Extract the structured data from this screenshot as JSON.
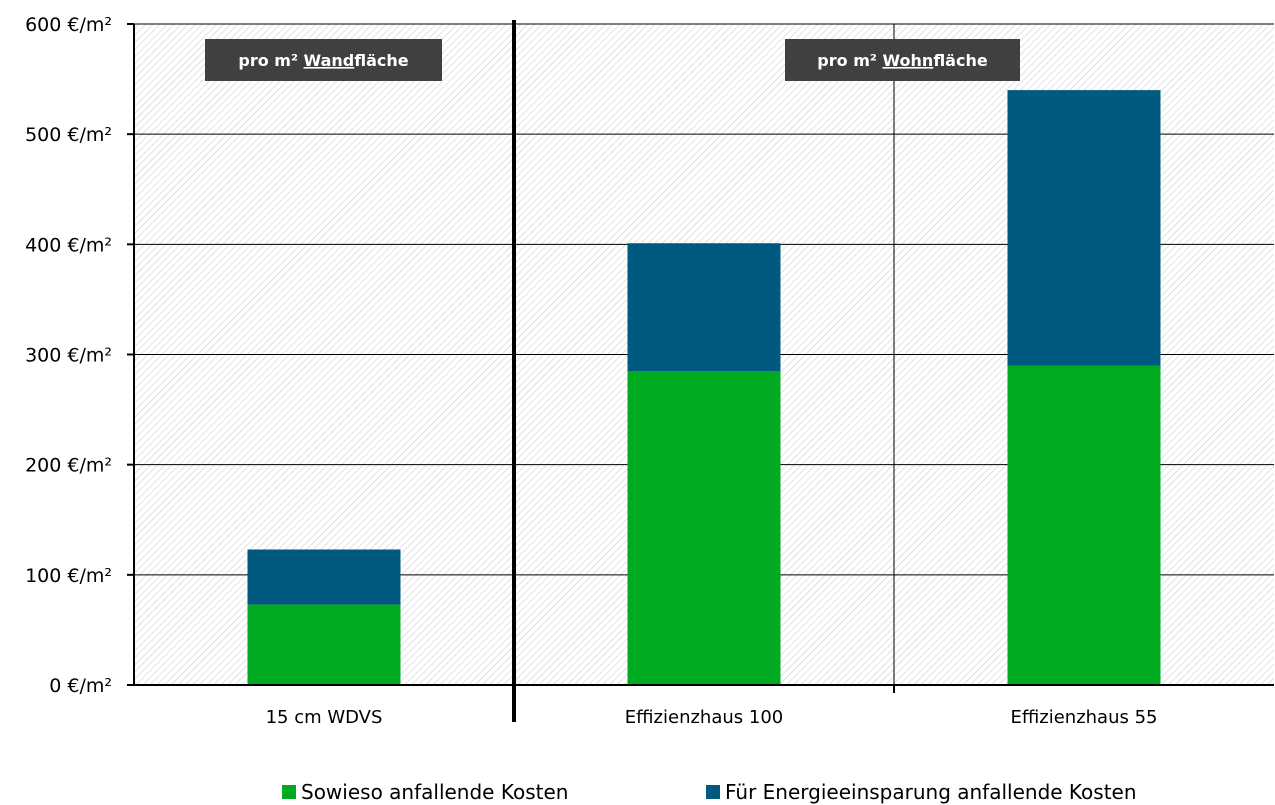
{
  "chart_data": {
    "type": "bar",
    "stacked": true,
    "categories": [
      "15 cm WDVS",
      "Effizienzhaus 100",
      "Effizienzhaus 55"
    ],
    "series": [
      {
        "name": "Sowieso anfallende Kosten",
        "color": "#00ab22",
        "values": [
          73,
          285,
          290
        ]
      },
      {
        "name": "Für Energieeinsparung anfallende Kosten",
        "color": "#005a7f",
        "values": [
          50,
          116,
          250
        ]
      }
    ],
    "ylim": [
      0,
      600
    ],
    "yticks": [
      0,
      100,
      200,
      300,
      400,
      500,
      600
    ],
    "ytick_labels": [
      "0  €/m²",
      "100  €/m²",
      "200  €/m²",
      "300  €/m²",
      "400  €/m²",
      "500  €/m²",
      "600  €/m²"
    ],
    "grid": true,
    "legend_position": "bottom",
    "annotations": [
      {
        "prefix": "pro m² ",
        "underlined": "Wand",
        "suffix": "fläche"
      },
      {
        "prefix": "pro m² ",
        "underlined": "Wohn",
        "suffix": "fläche"
      }
    ]
  }
}
